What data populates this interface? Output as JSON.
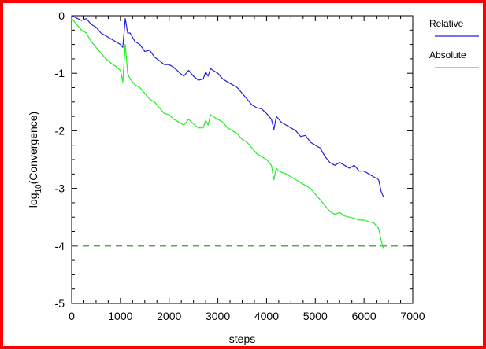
{
  "chart_data": {
    "type": "line",
    "title": "",
    "xlabel": "steps",
    "ylabel": "log10(Convergence)",
    "ylabel_parts": {
      "prefix": "log",
      "subscript": "10",
      "suffix": "(Convergence)"
    },
    "xlim": [
      0,
      7000
    ],
    "ylim": [
      -5,
      0
    ],
    "xticks": [
      0,
      1000,
      2000,
      3000,
      4000,
      5000,
      6000,
      7000
    ],
    "yticks": [
      0,
      -1,
      -2,
      -3,
      -4,
      -5
    ],
    "xtick_labels": [
      "0",
      "1000",
      "2000",
      "3000",
      "4000",
      "5000",
      "6000",
      "7000"
    ],
    "ytick_labels": [
      "0",
      "-1",
      "-2",
      "-3",
      "-4",
      "-5"
    ],
    "grid": false,
    "legend_placement": "right",
    "series": [
      {
        "name": "Relative",
        "color": "#2020e0",
        "x": [
          0,
          200,
          300,
          400,
          500,
          600,
          700,
          800,
          900,
          1000,
          1050,
          1100,
          1150,
          1200,
          1300,
          1400,
          1500,
          1600,
          1700,
          1800,
          1900,
          2000,
          2100,
          2200,
          2300,
          2400,
          2500,
          2600,
          2700,
          2750,
          2800,
          2850,
          2900,
          3000,
          3100,
          3200,
          3300,
          3400,
          3500,
          3600,
          3700,
          3800,
          3900,
          4000,
          4100,
          4150,
          4200,
          4250,
          4300,
          4400,
          4500,
          4600,
          4700,
          4800,
          4900,
          5000,
          5100,
          5200,
          5300,
          5400,
          5500,
          5600,
          5700,
          5800,
          5900,
          6000,
          6100,
          6200,
          6300,
          6350,
          6400
        ],
        "y": [
          0.0,
          -0.08,
          -0.05,
          -0.15,
          -0.2,
          -0.3,
          -0.35,
          -0.4,
          -0.45,
          -0.5,
          -0.55,
          -0.05,
          -0.3,
          -0.3,
          -0.45,
          -0.5,
          -0.62,
          -0.6,
          -0.72,
          -0.78,
          -0.85,
          -0.85,
          -0.9,
          -0.98,
          -1.05,
          -0.95,
          -1.05,
          -1.12,
          -1.1,
          -0.98,
          -1.05,
          -0.92,
          -0.95,
          -1.0,
          -1.1,
          -1.15,
          -1.2,
          -1.25,
          -1.35,
          -1.45,
          -1.55,
          -1.6,
          -1.62,
          -1.7,
          -1.8,
          -1.98,
          -1.75,
          -1.8,
          -1.85,
          -1.9,
          -1.95,
          -2.0,
          -2.1,
          -2.08,
          -2.2,
          -2.25,
          -2.3,
          -2.45,
          -2.55,
          -2.6,
          -2.55,
          -2.6,
          -2.65,
          -2.6,
          -2.7,
          -2.7,
          -2.75,
          -2.8,
          -2.85,
          -3.05,
          -3.15
        ]
      },
      {
        "name": "Absolute",
        "color": "#22ee22",
        "x": [
          0,
          200,
          300,
          400,
          500,
          600,
          700,
          800,
          900,
          1000,
          1050,
          1100,
          1150,
          1200,
          1300,
          1400,
          1500,
          1600,
          1700,
          1800,
          1900,
          2000,
          2100,
          2200,
          2300,
          2400,
          2500,
          2600,
          2700,
          2750,
          2800,
          2850,
          2900,
          3000,
          3100,
          3200,
          3300,
          3400,
          3500,
          3600,
          3700,
          3800,
          3900,
          4000,
          4100,
          4150,
          4200,
          4250,
          4300,
          4400,
          4500,
          4600,
          4700,
          4800,
          4900,
          5000,
          5100,
          5200,
          5300,
          5400,
          5500,
          5600,
          5700,
          5800,
          5900,
          6000,
          6100,
          6200,
          6300,
          6350,
          6400
        ],
        "y": [
          -0.05,
          -0.25,
          -0.3,
          -0.45,
          -0.55,
          -0.65,
          -0.75,
          -0.82,
          -0.88,
          -0.95,
          -1.15,
          -0.5,
          -1.0,
          -1.1,
          -1.2,
          -1.25,
          -1.35,
          -1.45,
          -1.5,
          -1.6,
          -1.7,
          -1.72,
          -1.8,
          -1.85,
          -1.9,
          -1.8,
          -1.88,
          -1.95,
          -1.95,
          -1.82,
          -1.9,
          -1.72,
          -1.75,
          -1.8,
          -1.85,
          -1.95,
          -2.0,
          -2.05,
          -2.15,
          -2.2,
          -2.3,
          -2.4,
          -2.45,
          -2.5,
          -2.6,
          -2.85,
          -2.65,
          -2.7,
          -2.72,
          -2.75,
          -2.8,
          -2.85,
          -2.9,
          -2.95,
          -3.0,
          -3.1,
          -3.2,
          -3.3,
          -3.4,
          -3.45,
          -3.42,
          -3.48,
          -3.5,
          -3.52,
          -3.55,
          -3.55,
          -3.58,
          -3.6,
          -3.7,
          -3.9,
          -4.05
        ]
      }
    ],
    "reference_lines": [
      {
        "y": -4,
        "style": "dashed",
        "color": "#2a8a2a"
      }
    ]
  }
}
